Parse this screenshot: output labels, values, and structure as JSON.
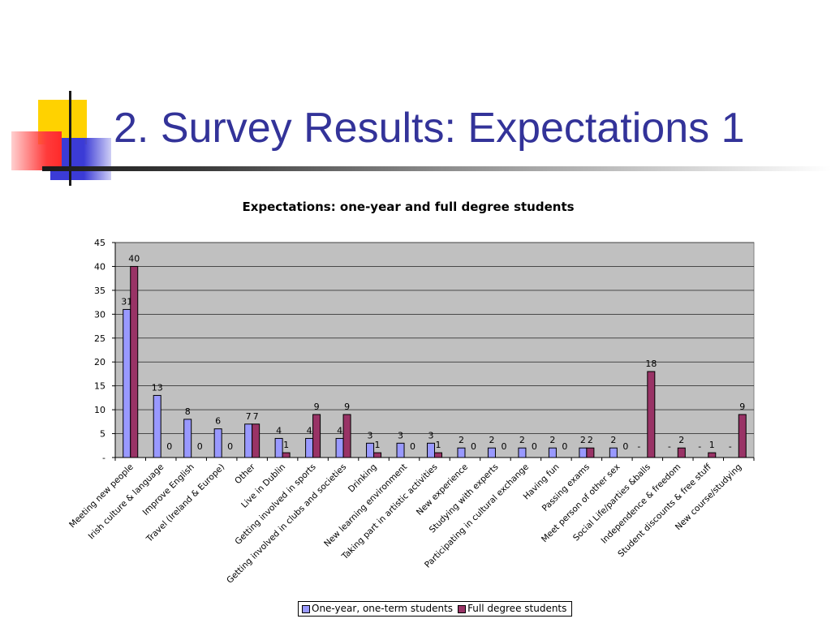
{
  "slide": {
    "title": "2. Survey Results: Expectations 1"
  },
  "colors": {
    "title": "#333399",
    "plot_background": "#c0c0c0",
    "series_one_year": "#9999ff",
    "series_full_degree": "#993366"
  },
  "chart_data": {
    "type": "bar",
    "title": "Expectations: one-year and full degree students",
    "xlabel": "",
    "ylabel": "",
    "ylim": [
      0,
      45
    ],
    "yticks": [
      0,
      5,
      10,
      15,
      20,
      25,
      30,
      35,
      40,
      45
    ],
    "ytick_labels": [
      "-",
      "5",
      "10",
      "15",
      "20",
      "25",
      "30",
      "35",
      "40",
      "45"
    ],
    "grid": true,
    "legend_position": "bottom",
    "categories": [
      "Meeting new people",
      "Irish culture & language",
      "Improve English",
      "Travel (Ireland & Europe)",
      "Other",
      "Live in Dublin",
      "Getting involved in sports",
      "Getting involved in clubs and societies",
      "Drinking",
      "New learning environment",
      "Taking part in artistic activities",
      "New experience",
      "Studying with experts",
      "Participating in cultural exchange",
      "Having fun",
      "Passing  exams",
      "Meet person of other sex",
      "Social Life/parties &balls",
      "Independence & freedom",
      "Student discounts & free stuff",
      "New course/studying"
    ],
    "series": [
      {
        "name": "One-year, one-term students",
        "values": [
          31,
          13,
          8,
          6,
          7,
          4,
          4,
          4,
          3,
          3,
          3,
          2,
          2,
          2,
          2,
          2,
          2,
          0,
          0,
          0,
          0
        ],
        "labels": [
          "31",
          "13",
          "8",
          "6",
          "7",
          "4",
          "4",
          "4",
          "3",
          "3",
          "3",
          "2",
          "2",
          "2",
          "2",
          "2",
          "2",
          "-",
          "-",
          "-",
          "-"
        ]
      },
      {
        "name": "Full degree students",
        "values": [
          40,
          0,
          0,
          0,
          7,
          1,
          9,
          9,
          1,
          0,
          1,
          0,
          0,
          0,
          0,
          2,
          0,
          18,
          2,
          1,
          9
        ],
        "labels": [
          "40",
          "0",
          "0",
          "0",
          "7",
          "1",
          "9",
          "9",
          "1",
          "0",
          "1",
          "0",
          "0",
          "0",
          "0",
          "2",
          "0",
          "18",
          "2",
          "1",
          "9"
        ]
      }
    ]
  }
}
